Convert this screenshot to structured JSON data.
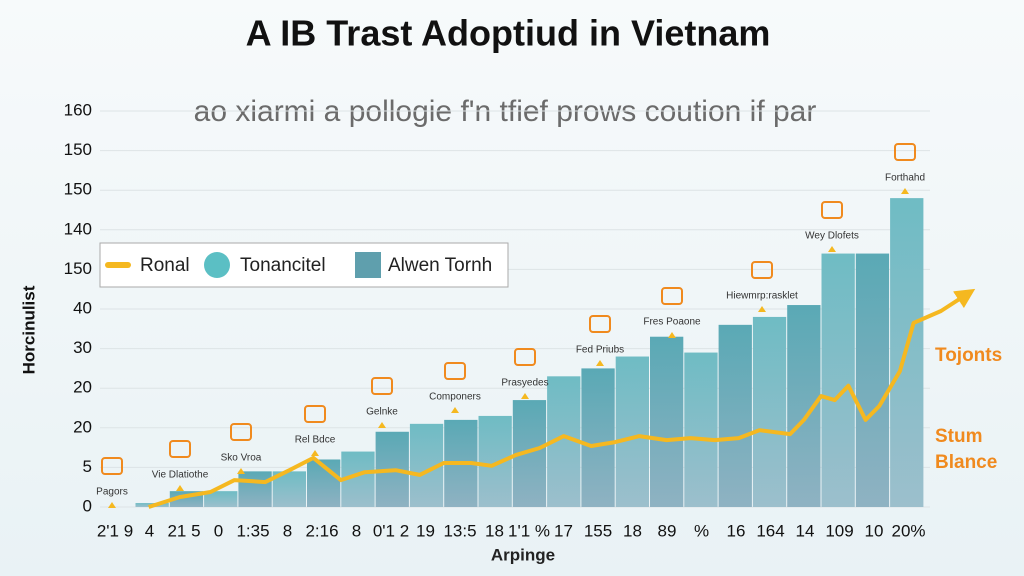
{
  "chart_data": {
    "type": "bar",
    "title": "A IB Trast Adoptiud in Vietnam",
    "subtitle": "ao xiarmi a pollogie f'n tfief prows coution if par",
    "y_label": "Horcinulist",
    "x_label": "Arpinge",
    "x_labels": [
      "2'1 9",
      "4",
      "21 5",
      "0",
      "1:35",
      "8",
      "2:16",
      "8",
      "0'1 2",
      "19",
      "13:5",
      "18",
      "1'1 %",
      "17",
      "155",
      "18",
      "89",
      "%",
      "16",
      "164",
      "14",
      "109",
      "10",
      "20%"
    ],
    "xlim": [
      -0.5,
      24.5
    ],
    "ylim": [
      0,
      10
    ],
    "yticks": [
      {
        "value": 0,
        "label": "0"
      },
      {
        "value": 1,
        "label": "5"
      },
      {
        "value": 2,
        "label": "20"
      },
      {
        "value": 3,
        "label": "20"
      },
      {
        "value": 4,
        "label": "30"
      },
      {
        "value": 5,
        "label": "40"
      },
      {
        "value": 6,
        "label": "150"
      },
      {
        "value": 7,
        "label": "140"
      },
      {
        "value": 8,
        "label": "150"
      },
      {
        "value": 9,
        "label": "150"
      },
      {
        "value": 10,
        "label": "160"
      }
    ],
    "grid": true,
    "series": [
      {
        "name": "Ronal",
        "color": "#f5b820",
        "x": [
          -0.1,
          0.8,
          1.7,
          2.4,
          3.3,
          4.0,
          4.7,
          5.5,
          6.2,
          7.1,
          7.8,
          8.5,
          9.3,
          9.9,
          10.6,
          11.3,
          12.0,
          12.8,
          13.5,
          14.2,
          15.0,
          15.7,
          16.4,
          17.1,
          17.7,
          18.6,
          19.0,
          19.5,
          19.9,
          20.3,
          20.8,
          21.2,
          21.8,
          22.2,
          23.0,
          23.8
        ],
        "values": [
          0,
          0.25,
          0.38,
          0.68,
          0.63,
          0.93,
          1.24,
          0.68,
          0.88,
          0.93,
          0.81,
          1.11,
          1.11,
          1.04,
          1.31,
          1.49,
          1.79,
          1.54,
          1.64,
          1.79,
          1.69,
          1.74,
          1.69,
          1.74,
          1.94,
          1.84,
          2.2,
          2.8,
          2.7,
          3.06,
          2.2,
          2.55,
          3.43,
          4.65,
          4.95,
          5.4
        ]
      },
      {
        "name": "Tonancitel",
        "color": "#5bbfc4"
      },
      {
        "name": "Alwen Tornh",
        "color": "#5f9fad",
        "values": [
          0.1,
          0.4,
          0.4,
          0.9,
          0.9,
          1.2,
          1.4,
          1.9,
          2.1,
          2.2,
          2.3,
          2.7,
          3.3,
          3.5,
          3.8,
          4.3,
          3.9,
          4.6,
          4.8,
          5.1,
          6.4,
          6.4,
          7.8
        ]
      }
    ],
    "annotations": [
      "Pagors",
      "Vie Dlatiothe",
      "Sko Vroa",
      "Rel Bdce",
      "Gelnke",
      "Componers",
      "Prasyedes",
      "Fed Priubs",
      "Fres Poaone",
      "Hiewmrp:rasklet",
      "Wey Dlofets",
      "Forthahd"
    ],
    "side_labels": [
      "Tojonts",
      "Stum",
      "Blance"
    ]
  }
}
